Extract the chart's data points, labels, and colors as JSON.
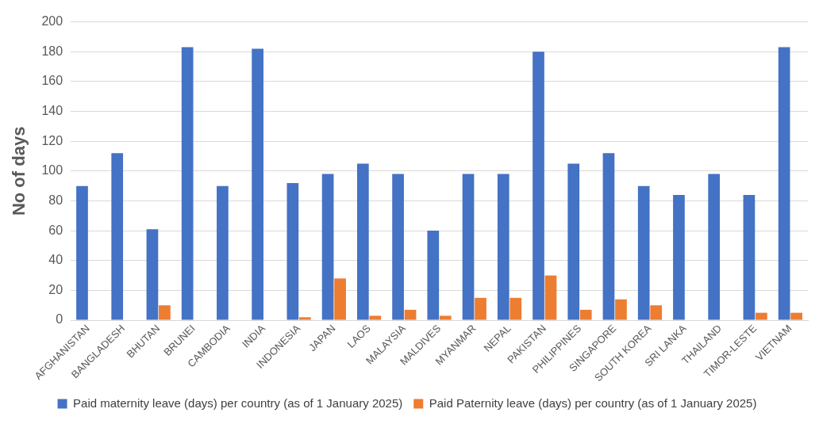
{
  "chart_data": {
    "type": "bar",
    "ylabel": "No of days",
    "categories": [
      "AFGHANISTAN",
      "BANGLADESH",
      "BHUTAN",
      "BRUNEI",
      "CAMBODIA",
      "INDIA",
      "INDONESIA",
      "JAPAN",
      "LAOS",
      "MALAYSIA",
      "MALDIVES",
      "MYANMAR",
      "NEPAL",
      "PAKISTAN",
      "PHILIPPINES",
      "SINGAPORE",
      "SOUTH KOREA",
      "SRI LANKA",
      "THAILAND",
      "TIMOR-LESTE",
      "VIETNAM"
    ],
    "series": [
      {
        "name": "Paid maternity leave (days) per country (as of 1 January 2025)",
        "color": "#4472c4",
        "values": [
          90,
          112,
          61,
          183,
          90,
          182,
          92,
          98,
          105,
          98,
          60,
          98,
          98,
          180,
          105,
          112,
          90,
          84,
          98,
          84,
          183
        ]
      },
      {
        "name": "Paid Paternity leave (days) per country (as of 1 January 2025)",
        "color": "#ed7d31",
        "values": [
          null,
          null,
          10,
          null,
          null,
          null,
          2,
          28,
          3,
          7,
          3,
          15,
          15,
          30,
          7,
          14,
          10,
          null,
          null,
          5,
          5
        ]
      }
    ],
    "ylim": [
      0,
      200
    ],
    "yticks": [
      0,
      20,
      40,
      60,
      80,
      100,
      120,
      140,
      160,
      180,
      200
    ],
    "grid": "y",
    "legend": "bottom"
  }
}
